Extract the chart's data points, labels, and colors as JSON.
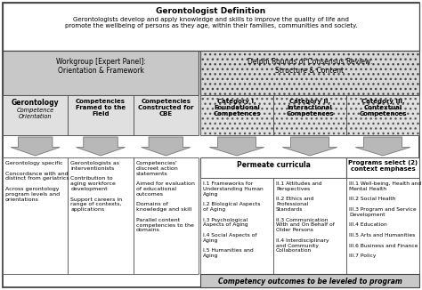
{
  "title": "Gerontologist Definition",
  "title_text": "Gerontologists develop and apply knowledge and skills to improve the quality of life and\npromote the wellbeing of persons as they age, within their families, communities and society.",
  "workgroup_title": "Workgroup [Expert Panel]:\nOrientation & Framework",
  "delphi_title": "Delphi Rounds of Consensus Review:\nStructure & Content",
  "col1_header": "Gerontology\nCompetence\nOrientation",
  "col2_header": "Competencies\nFramed to the\nField",
  "col3_header": "Competencies\nConstructed for\nCBE",
  "cat1_header": "Category I.\nFoundational\nCompetences",
  "cat2_header": "Category II.\nInteractional\nCompetences",
  "cat3_header": "Category III.\nContextual\nCompetences",
  "permeate": "Permeate curricula",
  "programs": "Programs select (2)\ncontext emphases",
  "col1_body": "Gerontology specific\n\nConcordance with and\ndistinct from geriatrics\n\nAcross gerontology\nprogram levels and\norientations",
  "col2_body": "Gerontologists as\ninterventionists\n\nContribution to\naging workforce\ndevelopment\n\nSupport careers in\nrange of contexts,\napplications",
  "col3_body": "Competencies'\ndiscreet action\nstatements\n\nAimed for evaluation\nof educational\noutcomes\n\nDomains of\nknowledge and skill\n\nParallel content\ncompetencies to the\ndomains",
  "foundational_items": "I.1 Frameworks for\nUnderstanding Human\nAging\n\nI.2 Biological Aspects\nof Aging\n\nI.3 Psychological\nAspects of Aging\n\nI.4 Social Aspects of\nAging\n\nI.5 Humanities and\nAging",
  "interactional_items": "II.1 Attitudes and\nPerspectives\n\nII.2 Ethics and\nProfessional\nStandards\n\nII.3 Communication\nWith and On Behalf of\nOlder Persons\n\nII.4 Interdisciplinary\nand Community\nCollaboration",
  "contextual_items": "III.1 Well-being, Health and\nMental Health\n\nIII.2 Social Health\n\nIII.3 Program and Service\nDevelopment\n\nIII.4 Education\n\nIII.5 Arts and Humanities\n\nIII.6 Business and Finance\n\nIII.7 Policy",
  "bottom_text": "Competency outcomes to be leveled to program",
  "bg_color": "#ffffff",
  "gray_bg": "#c8c8c8",
  "light_gray_bg": "#e0e0e0",
  "dotted_bg": "#d8d8d8",
  "white": "#ffffff",
  "border_color": "#444444"
}
